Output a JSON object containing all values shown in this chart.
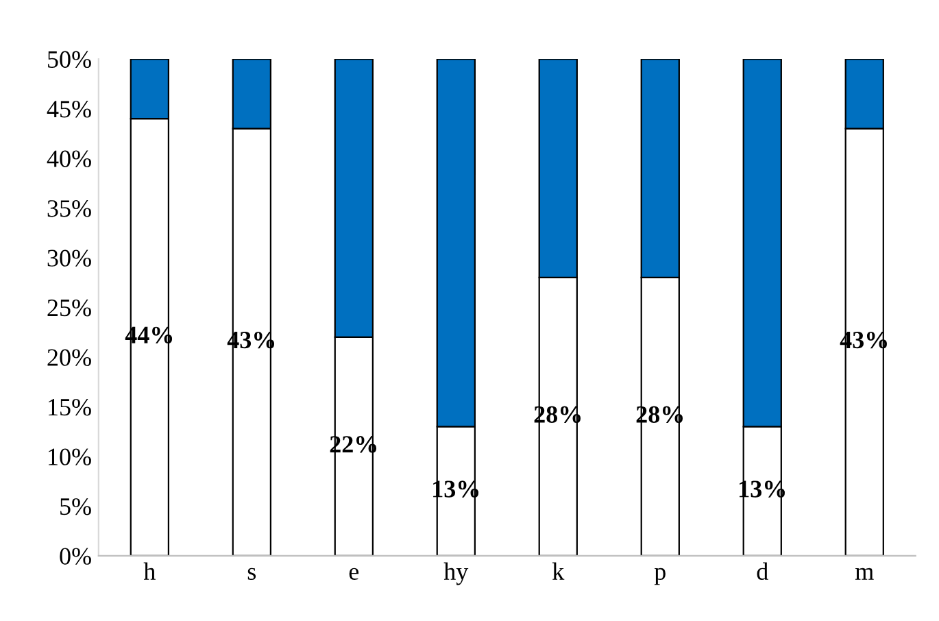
{
  "chart_data": {
    "type": "bar",
    "stacked": true,
    "categories": [
      "h",
      "s",
      "e",
      "hy",
      "k",
      "p",
      "d",
      "m"
    ],
    "series": [
      {
        "color": "#ffffff",
        "values": [
          44,
          43,
          22,
          13,
          28,
          28,
          13,
          43
        ],
        "value_labels": [
          "44%",
          "43%",
          "22%",
          "13%",
          "28%",
          "28%",
          "13%",
          "43%"
        ]
      },
      {
        "color": "#0070c0",
        "values": [
          6,
          7,
          28,
          37,
          22,
          22,
          37,
          7
        ]
      }
    ],
    "ylim": [
      0,
      50
    ],
    "yticks": [
      {
        "value": 0,
        "label": "0%"
      },
      {
        "value": 5,
        "label": "5%"
      },
      {
        "value": 10,
        "label": "10%"
      },
      {
        "value": 15,
        "label": "15%"
      },
      {
        "value": 20,
        "label": "20%"
      },
      {
        "value": 25,
        "label": "25%"
      },
      {
        "value": 30,
        "label": "30%"
      },
      {
        "value": 35,
        "label": "35%"
      },
      {
        "value": 40,
        "label": "40%"
      },
      {
        "value": 45,
        "label": "45%"
      },
      {
        "value": 50,
        "label": "50%"
      }
    ],
    "grid": false,
    "legend": false
  }
}
